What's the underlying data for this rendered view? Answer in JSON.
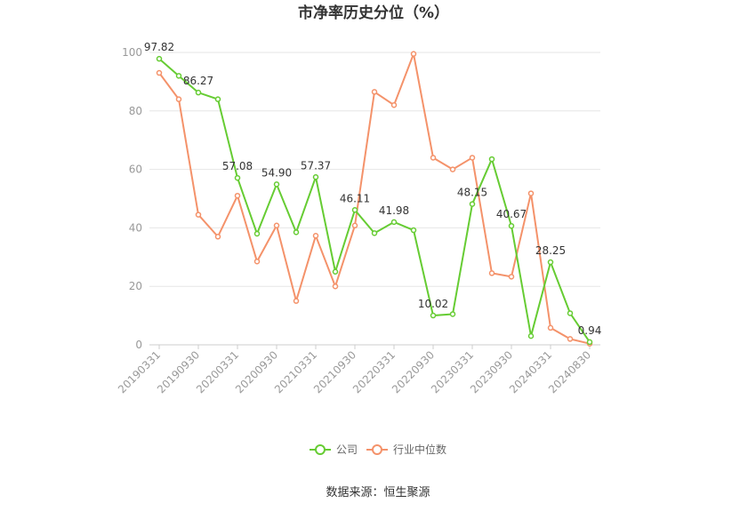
{
  "chart_data": {
    "type": "line",
    "title": "市净率历史分位（%）",
    "source": "数据来源：恒生聚源",
    "xlabel": "",
    "ylabel": "",
    "ylim": [
      0,
      100
    ],
    "yticks": [
      0,
      20,
      40,
      60,
      80,
      100
    ],
    "grid": true,
    "legend_position": "bottom",
    "x": [
      "20190331",
      "20190630",
      "20190930",
      "20191231",
      "20200331",
      "20200630",
      "20200930",
      "20201231",
      "20210331",
      "20210630",
      "20210930",
      "20211231",
      "20220331",
      "20220630",
      "20220930",
      "20221231",
      "20230331",
      "20230630",
      "20230930",
      "20231231",
      "20240331",
      "20240630",
      "20240830"
    ],
    "x_tick_labels": [
      "20190331",
      "20190930",
      "20200331",
      "20200930",
      "20210331",
      "20210930",
      "20220331",
      "20220930",
      "20230331",
      "20230930",
      "20240331",
      "20240830"
    ],
    "series": [
      {
        "name": "公司",
        "color": "#66cc33",
        "values": [
          97.82,
          92,
          86.27,
          84,
          57.08,
          38,
          54.9,
          38.5,
          57.37,
          25,
          46.11,
          38.2,
          41.98,
          39.2,
          10.02,
          10.5,
          48.15,
          63.5,
          40.67,
          3,
          28.25,
          10.8,
          0.94
        ],
        "labels": [
          "97.82",
          "",
          "86.27",
          "",
          "57.08",
          "",
          "54.90",
          "",
          "57.37",
          "",
          "46.11",
          "",
          "41.98",
          "",
          "10.02",
          "",
          "48.15",
          "",
          "40.67",
          "",
          "28.25",
          "",
          "0.94"
        ]
      },
      {
        "name": "行业中位数",
        "color": "#f4926a",
        "values": [
          93,
          84,
          44.5,
          37,
          51,
          28.5,
          40.8,
          15,
          37.3,
          20,
          40.8,
          86.5,
          82,
          99.5,
          64,
          60,
          64,
          24.5,
          23.3,
          51.8,
          5.8,
          2,
          0.4
        ]
      }
    ]
  }
}
